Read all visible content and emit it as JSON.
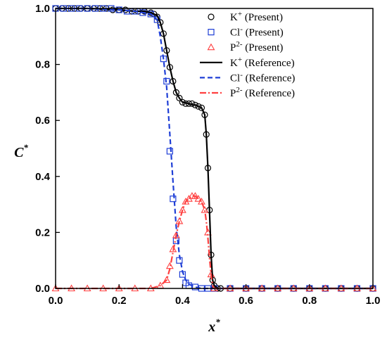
{
  "chart_data": {
    "type": "line",
    "xlabel": "x*",
    "ylabel": "C*",
    "xlim": [
      0,
      1
    ],
    "ylim": [
      0,
      1
    ],
    "xticks": [
      "0.0",
      "0.2",
      "0.4",
      "0.6",
      "0.8",
      "1.0"
    ],
    "yticks": [
      "0.0",
      "0.2",
      "0.4",
      "0.6",
      "0.8",
      "1.0"
    ],
    "grid": false,
    "legend_position": "top-right",
    "colors": {
      "k": "#000000",
      "cl": "#1f3fd6",
      "p": "#ff4040"
    },
    "series": [
      {
        "name": "K+ (Present)",
        "legend_main": "K",
        "legend_sup": "+",
        "legend_rest": " (Present)",
        "kind": "marker",
        "marker": "circle",
        "color": "#000000",
        "x": [
          0.0,
          0.02,
          0.04,
          0.06,
          0.08,
          0.1,
          0.12,
          0.14,
          0.16,
          0.18,
          0.2,
          0.22,
          0.24,
          0.26,
          0.28,
          0.3,
          0.31,
          0.32,
          0.33,
          0.34,
          0.35,
          0.36,
          0.37,
          0.38,
          0.39,
          0.4,
          0.41,
          0.42,
          0.43,
          0.44,
          0.45,
          0.46,
          0.47,
          0.475,
          0.48,
          0.485,
          0.49,
          0.495,
          0.5,
          0.51,
          0.52,
          0.55,
          0.6,
          0.65,
          0.7,
          0.75,
          0.8,
          0.85,
          0.9,
          0.95,
          1.0
        ],
        "y": [
          1.0,
          1.0,
          1.0,
          1.0,
          1.0,
          1.0,
          1.0,
          1.0,
          1.0,
          0.995,
          0.995,
          0.995,
          0.99,
          0.99,
          0.99,
          0.985,
          0.98,
          0.97,
          0.95,
          0.91,
          0.85,
          0.79,
          0.74,
          0.7,
          0.68,
          0.665,
          0.66,
          0.66,
          0.66,
          0.655,
          0.65,
          0.645,
          0.62,
          0.55,
          0.43,
          0.28,
          0.12,
          0.03,
          0.01,
          0.0,
          0.0,
          0.0,
          0.0,
          0.0,
          0.0,
          0.0,
          0.0,
          0.0,
          0.0,
          0.0,
          0.0
        ]
      },
      {
        "name": "Cl- (Present)",
        "legend_main": "Cl",
        "legend_sup": "-",
        "legend_rest": " (Present)",
        "kind": "marker",
        "marker": "square",
        "color": "#1f3fd6",
        "x": [
          0.0,
          0.025,
          0.05,
          0.075,
          0.1,
          0.125,
          0.15,
          0.175,
          0.2,
          0.225,
          0.25,
          0.275,
          0.3,
          0.32,
          0.34,
          0.35,
          0.36,
          0.37,
          0.38,
          0.39,
          0.4,
          0.41,
          0.42,
          0.44,
          0.46,
          0.48,
          0.5,
          0.55,
          0.6,
          0.65,
          0.7,
          0.75,
          0.8,
          0.85,
          0.9,
          0.95,
          1.0
        ],
        "y": [
          1.0,
          1.0,
          1.0,
          1.0,
          1.0,
          1.0,
          1.0,
          1.0,
          0.995,
          0.99,
          0.99,
          0.985,
          0.98,
          0.96,
          0.82,
          0.74,
          0.49,
          0.32,
          0.17,
          0.1,
          0.05,
          0.02,
          0.01,
          0.005,
          0.0,
          0.0,
          0.0,
          0.0,
          0.0,
          0.0,
          0.0,
          0.0,
          0.0,
          0.0,
          0.0,
          0.0,
          0.0
        ]
      },
      {
        "name": "P2- (Present)",
        "legend_main": "P",
        "legend_sup": "2-",
        "legend_rest": " (Present)",
        "kind": "marker",
        "marker": "triangle",
        "color": "#ff4040",
        "x": [
          0.0,
          0.05,
          0.1,
          0.15,
          0.2,
          0.25,
          0.3,
          0.33,
          0.35,
          0.36,
          0.37,
          0.38,
          0.39,
          0.4,
          0.41,
          0.42,
          0.43,
          0.44,
          0.45,
          0.46,
          0.47,
          0.48,
          0.49,
          0.5,
          0.55,
          0.6,
          0.65,
          0.7,
          0.75,
          0.8,
          0.85,
          0.9,
          0.95,
          1.0
        ],
        "y": [
          0.0,
          0.0,
          0.0,
          0.0,
          0.0,
          0.0,
          0.0,
          0.01,
          0.03,
          0.08,
          0.14,
          0.19,
          0.24,
          0.28,
          0.31,
          0.32,
          0.33,
          0.33,
          0.32,
          0.31,
          0.28,
          0.2,
          0.05,
          0.0,
          0.0,
          0.0,
          0.0,
          0.0,
          0.0,
          0.0,
          0.0,
          0.0,
          0.0,
          0.0
        ]
      },
      {
        "name": "K+ (Reference)",
        "legend_main": "K",
        "legend_sup": "+",
        "legend_rest": " (Reference)",
        "kind": "line",
        "dash": "",
        "color": "#000000",
        "x": [
          0.0,
          0.1,
          0.2,
          0.25,
          0.28,
          0.3,
          0.32,
          0.33,
          0.34,
          0.35,
          0.36,
          0.37,
          0.38,
          0.39,
          0.4,
          0.42,
          0.44,
          0.45,
          0.46,
          0.47,
          0.475,
          0.48,
          0.485,
          0.49,
          0.495,
          0.5,
          0.51,
          0.6,
          1.0
        ],
        "y": [
          1.0,
          1.0,
          0.995,
          0.99,
          0.99,
          0.985,
          0.975,
          0.95,
          0.91,
          0.85,
          0.79,
          0.74,
          0.7,
          0.68,
          0.665,
          0.66,
          0.655,
          0.65,
          0.645,
          0.62,
          0.55,
          0.43,
          0.28,
          0.12,
          0.03,
          0.01,
          0.0,
          0.0,
          0.0
        ]
      },
      {
        "name": "Cl- (Reference)",
        "legend_main": "Cl",
        "legend_sup": "-",
        "legend_rest": " (Reference)",
        "kind": "line",
        "dash": "7,4",
        "color": "#1f3fd6",
        "x": [
          0.0,
          0.1,
          0.2,
          0.25,
          0.3,
          0.32,
          0.33,
          0.34,
          0.35,
          0.36,
          0.37,
          0.38,
          0.39,
          0.4,
          0.41,
          0.42,
          0.44,
          0.46,
          0.5,
          1.0
        ],
        "y": [
          1.0,
          1.0,
          0.995,
          0.99,
          0.98,
          0.96,
          0.9,
          0.82,
          0.72,
          0.55,
          0.38,
          0.22,
          0.12,
          0.06,
          0.03,
          0.015,
          0.005,
          0.0,
          0.0,
          0.0
        ]
      },
      {
        "name": "P2- (Reference)",
        "legend_main": "P",
        "legend_sup": "2-",
        "legend_rest": " (Reference)",
        "kind": "line",
        "dash": "9,3,2,3",
        "color": "#ff4040",
        "x": [
          0.0,
          0.3,
          0.33,
          0.35,
          0.36,
          0.37,
          0.38,
          0.39,
          0.4,
          0.41,
          0.42,
          0.43,
          0.44,
          0.45,
          0.46,
          0.47,
          0.475,
          0.48,
          0.485,
          0.49,
          0.495,
          0.5,
          1.0
        ],
        "y": [
          0.0,
          0.0,
          0.01,
          0.03,
          0.07,
          0.13,
          0.19,
          0.24,
          0.28,
          0.31,
          0.32,
          0.33,
          0.33,
          0.32,
          0.31,
          0.28,
          0.24,
          0.18,
          0.11,
          0.05,
          0.01,
          0.0,
          0.0
        ]
      }
    ]
  }
}
